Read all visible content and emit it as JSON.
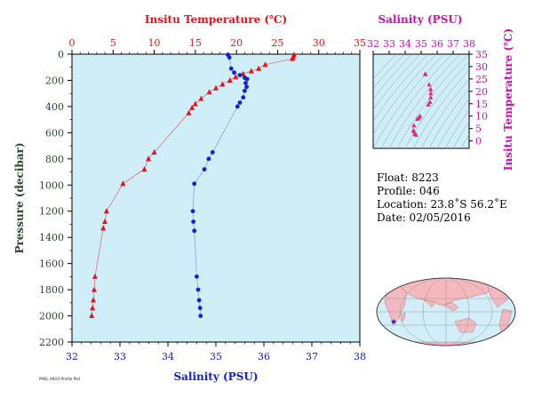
{
  "chart_data": [
    {
      "type": "line",
      "x_top_label": "Insitu Temperature (℃)",
      "x_bottom_label": "Salinity (PSU)",
      "y_label": "Pressure (decibar)",
      "temp_axis": [
        0,
        35
      ],
      "temp_ticks": [
        0,
        5,
        10,
        15,
        20,
        25,
        30,
        35
      ],
      "sal_axis": [
        32,
        38
      ],
      "sal_ticks": [
        32,
        33,
        34,
        35,
        36,
        37,
        38
      ],
      "pressure_axis": [
        0,
        2200
      ],
      "pressure_ticks": [
        0,
        200,
        400,
        600,
        800,
        1000,
        1200,
        1400,
        1600,
        1800,
        2000,
        2200
      ],
      "series": [
        {
          "color": "#e8101a",
          "marker": "triangle",
          "axis": "temperature",
          "points": [
            [
              27.0,
              5
            ],
            [
              26.9,
              20
            ],
            [
              26.8,
              35
            ],
            [
              23.5,
              80
            ],
            [
              22.7,
              110
            ],
            [
              21.8,
              130
            ],
            [
              20.8,
              150
            ],
            [
              19.9,
              175
            ],
            [
              19.2,
              200
            ],
            [
              18.3,
              230
            ],
            [
              17.5,
              260
            ],
            [
              16.7,
              290
            ],
            [
              15.7,
              340
            ],
            [
              15.0,
              380
            ],
            [
              14.6,
              410
            ],
            [
              14.2,
              450
            ],
            [
              10.0,
              750
            ],
            [
              9.3,
              800
            ],
            [
              8.8,
              880
            ],
            [
              6.2,
              990
            ],
            [
              4.2,
              1200
            ],
            [
              4.0,
              1280
            ],
            [
              3.8,
              1330
            ],
            [
              2.8,
              1700
            ],
            [
              2.7,
              1800
            ],
            [
              2.6,
              1880
            ],
            [
              2.5,
              1940
            ],
            [
              2.4,
              2000
            ]
          ]
        },
        {
          "color": "#1020d8",
          "marker": "circle",
          "axis": "salinity",
          "points": [
            [
              35.25,
              5
            ],
            [
              35.28,
              25
            ],
            [
              35.32,
              110
            ],
            [
              35.38,
              140
            ],
            [
              35.5,
              160
            ],
            [
              35.6,
              180
            ],
            [
              35.65,
              190
            ],
            [
              35.62,
              220
            ],
            [
              35.64,
              250
            ],
            [
              35.6,
              280
            ],
            [
              35.57,
              330
            ],
            [
              35.5,
              370
            ],
            [
              35.45,
              400
            ],
            [
              34.93,
              750
            ],
            [
              34.85,
              800
            ],
            [
              34.76,
              880
            ],
            [
              34.55,
              990
            ],
            [
              34.52,
              1200
            ],
            [
              34.53,
              1280
            ],
            [
              34.55,
              1350
            ],
            [
              34.6,
              1700
            ],
            [
              34.63,
              1800
            ],
            [
              34.65,
              1880
            ],
            [
              34.67,
              1940
            ],
            [
              34.68,
              2000
            ]
          ]
        }
      ]
    },
    {
      "type": "scatter",
      "x_label": "Salinity (PSU)",
      "y_label": "Insitu Temperature (℃)",
      "x_axis": [
        32,
        38
      ],
      "x_ticks": [
        32,
        33,
        34,
        35,
        36,
        37,
        38
      ],
      "y_axis": [
        -3,
        35
      ],
      "y_ticks": [
        0,
        5,
        10,
        15,
        20,
        25,
        30,
        35
      ],
      "marker_color": "#e4287c",
      "points": [
        [
          35.25,
          27.0
        ],
        [
          35.28,
          26.8
        ],
        [
          35.5,
          22.7
        ],
        [
          35.6,
          20.8
        ],
        [
          35.6,
          19.2
        ],
        [
          35.6,
          17.5
        ],
        [
          35.55,
          15.7
        ],
        [
          35.45,
          14.6
        ],
        [
          34.93,
          10.0
        ],
        [
          34.85,
          9.3
        ],
        [
          34.76,
          8.8
        ],
        [
          34.55,
          6.2
        ],
        [
          34.52,
          4.2
        ],
        [
          34.55,
          3.8
        ],
        [
          34.6,
          2.8
        ],
        [
          34.68,
          2.4
        ]
      ]
    }
  ],
  "info": {
    "float": "Float:  8223",
    "profile": "Profile:  046",
    "location": "Location:  23.8˚S  56.2˚E",
    "date": "Date:  02/05/2016"
  },
  "colors": {
    "temperature": "#e8101a",
    "salinity": "#1020d8",
    "pressure_axis": "#2a4a2a",
    "ts_axis": "#cc10b0",
    "plot_bg": "#cfeef8"
  },
  "map": {
    "marker_color": "#1020d8"
  },
  "footer": "PMEL ARGO Profile Plot"
}
